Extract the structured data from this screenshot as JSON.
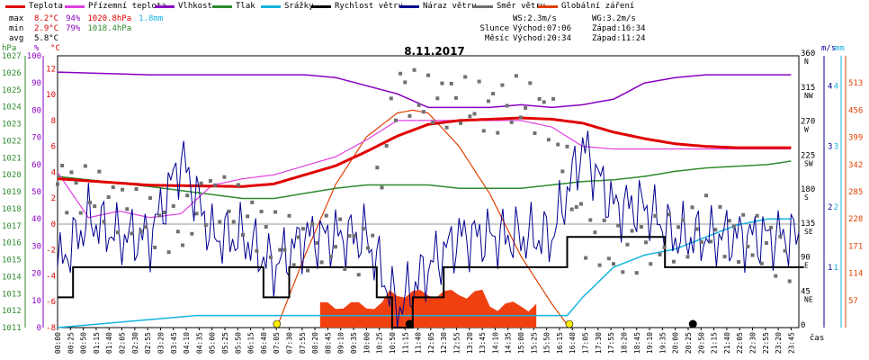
{
  "legend": [
    {
      "label": "Teplota",
      "color": "#e00000"
    },
    {
      "label": "Přízemní teplota",
      "color": "#e040e0"
    },
    {
      "label": "Vlhkost",
      "color": "#8a00c0"
    },
    {
      "label": "Tlak",
      "color": "#2e8b2e"
    },
    {
      "label": "Srážky",
      "color": "#14b4e0"
    },
    {
      "label": "Rychlost větru",
      "color": "#000000"
    },
    {
      "label": "Náraz větru",
      "color": "#000090"
    },
    {
      "label": "Směr větru",
      "color": "#707070"
    },
    {
      "label": "Globální záření",
      "color": "#e04000"
    }
  ],
  "stats": {
    "max": {
      "label": "max",
      "temp": "8.2°C",
      "hum": "94%",
      "press": "1020.8hPa",
      "rain": "1.8mm"
    },
    "min": {
      "label": "min",
      "temp": "2.9°C",
      "hum": "79%",
      "press": "1018.4hPa"
    },
    "avg": {
      "label": "avg",
      "temp": "5.8°C"
    }
  },
  "astro": {
    "ws": "WS:2.3m/s",
    "wg": "WG:3.2m/s",
    "sun": {
      "label": "Slunce",
      "rise": "Východ:07:06",
      "set": "Západ:16:34"
    },
    "moon": {
      "label": "Měsíc",
      "rise": "Východ:20:34",
      "set": "Západ:11:24"
    }
  },
  "title": "8.11.2017",
  "chart_data": {
    "type": "line",
    "title": "8.11.2017",
    "xlabel": "čas",
    "x_ticks": [
      "00:00",
      "00:25",
      "00:50",
      "01:15",
      "01:40",
      "02:05",
      "02:30",
      "02:55",
      "03:20",
      "03:45",
      "04:10",
      "04:35",
      "05:00",
      "05:25",
      "05:50",
      "06:15",
      "06:40",
      "07:05",
      "07:30",
      "07:55",
      "08:20",
      "08:45",
      "09:10",
      "09:35",
      "10:00",
      "10:25",
      "10:50",
      "11:15",
      "11:40",
      "12:05",
      "12:30",
      "12:55",
      "13:20",
      "13:45",
      "14:10",
      "14:35",
      "15:00",
      "15:25",
      "15:50",
      "16:15",
      "16:40",
      "17:05",
      "17:30",
      "17:55",
      "18:20",
      "18:45",
      "19:10",
      "19:35",
      "20:00",
      "20:25",
      "20:50",
      "21:15",
      "21:40",
      "22:05",
      "22:30",
      "22:55",
      "23:20",
      "23:45"
    ],
    "axes": {
      "hPa": {
        "label": "hPa",
        "ticks": [
          "1027",
          "1026",
          "1025",
          "1024",
          "1023",
          "1022",
          "1021",
          "1020",
          "1019",
          "1018",
          "1017",
          "1016",
          "1015",
          "1014",
          "1013",
          "1012",
          "1011"
        ],
        "range": [
          1011,
          1027
        ]
      },
      "percent": {
        "label": "%",
        "ticks": [
          "100",
          "90",
          "80",
          "70",
          "60",
          "50",
          "40",
          "30",
          "20",
          "10",
          "0"
        ],
        "range": [
          0,
          100
        ]
      },
      "celsius": {
        "label": "°C",
        "ticks": [
          "12",
          "10",
          "8",
          "6",
          "4",
          "2",
          "0",
          "-2",
          "-4",
          "-6",
          "-8"
        ],
        "range": [
          -8,
          13
        ]
      },
      "direction": {
        "ticks": [
          "360",
          "315",
          "270",
          "225",
          "180",
          "135",
          "90",
          "45",
          "0"
        ],
        "dir_labels": [
          "N",
          "NW",
          "W",
          "SW",
          "S",
          "SE",
          "E",
          "NE",
          ""
        ],
        "range": [
          0,
          360
        ]
      },
      "wind_ms": {
        "label": "m/s",
        "ticks": [
          "4",
          "3",
          "2",
          "1"
        ],
        "range": [
          0,
          4.5
        ]
      },
      "rain_mm": {
        "label": "mm",
        "ticks": [
          "4",
          "3",
          "2",
          "1"
        ],
        "range": [
          0,
          4.5
        ]
      },
      "radiation": {
        "ticks": [
          "513",
          "456",
          "399",
          "342",
          "285",
          "228",
          "171",
          "114",
          "57"
        ],
        "range": [
          0,
          570
        ]
      }
    },
    "series": [
      {
        "name": "Teplota",
        "unit": "°C",
        "x": [
          0,
          3,
          6,
          7,
          8,
          9,
          10,
          11,
          12,
          13,
          14,
          15,
          16,
          17,
          18,
          19,
          20,
          21,
          22,
          23,
          23.75
        ],
        "values": [
          3.5,
          3.0,
          2.9,
          3.1,
          3.8,
          4.5,
          5.6,
          6.8,
          7.7,
          8.0,
          8.1,
          8.2,
          8.1,
          7.8,
          7.1,
          6.6,
          6.2,
          6.0,
          5.9,
          5.9,
          5.9
        ]
      },
      {
        "name": "Přízemní teplota",
        "unit": "°C",
        "x": [
          0,
          1,
          2,
          3,
          4,
          5,
          6,
          7,
          8,
          9,
          10,
          11,
          12,
          13,
          14,
          15,
          16,
          17,
          18,
          19,
          20,
          21,
          22,
          23,
          23.75
        ],
        "values": [
          4.0,
          0.5,
          1.0,
          0.5,
          0.8,
          3.0,
          3.5,
          3.8,
          4.5,
          5.2,
          6.5,
          8.0,
          8.0,
          8.0,
          8.0,
          8.0,
          7.5,
          6.0,
          5.8,
          5.8,
          5.8,
          5.8,
          5.8,
          5.8,
          5.8
        ]
      },
      {
        "name": "Vlhkost",
        "unit": "%",
        "x": [
          0,
          3,
          6,
          7,
          8,
          9,
          10,
          11,
          12,
          13,
          14,
          15,
          16,
          17,
          18,
          19,
          20,
          21,
          22,
          23,
          23.75
        ],
        "values": [
          94,
          93,
          93,
          93,
          93,
          92,
          89,
          86,
          81,
          81,
          81,
          82,
          81,
          82,
          84,
          90,
          92,
          93,
          93,
          93,
          93
        ]
      },
      {
        "name": "Tlak",
        "unit": "hPa",
        "x": [
          0,
          3,
          6,
          7,
          8,
          9,
          10,
          11,
          12,
          13,
          14,
          15,
          16,
          17,
          18,
          19,
          20,
          21,
          22,
          23,
          23.75
        ],
        "values": [
          1019.9,
          1019.3,
          1018.6,
          1018.6,
          1018.9,
          1019.2,
          1019.4,
          1019.4,
          1019.4,
          1019.2,
          1019.2,
          1019.2,
          1019.4,
          1019.6,
          1019.7,
          1019.9,
          1020.2,
          1020.4,
          1020.5,
          1020.6,
          1020.8
        ]
      },
      {
        "name": "Srážky",
        "unit": "mm",
        "x": [
          0,
          4.5,
          16.5,
          17,
          18,
          19,
          20,
          21,
          22,
          23,
          23.75
        ],
        "values": [
          0,
          0.2,
          0.2,
          0.5,
          1.0,
          1.2,
          1.3,
          1.5,
          1.7,
          1.8,
          1.8
        ]
      },
      {
        "name": "Rychlost větru",
        "unit": "m/s",
        "x": [
          0,
          1,
          2,
          3,
          4,
          5,
          6,
          7,
          8,
          9,
          10,
          11,
          12,
          13,
          14,
          15,
          16,
          17,
          18,
          19,
          20,
          21,
          22,
          23,
          23.75
        ],
        "values": [
          0.5,
          1.0,
          1.0,
          1.0,
          1.2,
          1.0,
          1.0,
          0.5,
          1.0,
          1.0,
          1.0,
          0.0,
          0.5,
          1.0,
          1.0,
          1.0,
          1.0,
          1.5,
          1.5,
          1.5,
          1.0,
          1.0,
          1.0,
          1.0,
          1.0
        ]
      },
      {
        "name": "Náraz větru",
        "unit": "m/s",
        "x": [
          0,
          1,
          2,
          3,
          4,
          5,
          6,
          7,
          8,
          9,
          10,
          11,
          12,
          13,
          14,
          15,
          16,
          17,
          18,
          19,
          20,
          21,
          22,
          23,
          23.75
        ],
        "values": [
          1.0,
          1.8,
          1.5,
          1.5,
          2.8,
          1.5,
          1.5,
          1.0,
          1.5,
          1.5,
          1.5,
          0.3,
          1.0,
          1.5,
          1.5,
          1.5,
          1.5,
          3.0,
          2.0,
          2.0,
          1.5,
          1.5,
          1.5,
          1.5,
          1.5
        ]
      },
      {
        "name": "Směr větru",
        "unit": "°",
        "x": [
          0,
          1,
          2,
          3,
          4,
          5,
          6,
          7,
          8,
          9,
          10,
          11,
          12,
          13,
          14,
          15,
          16,
          17,
          18,
          19,
          20,
          21,
          22,
          23,
          23.75
        ],
        "values": [
          190,
          180,
          160,
          140,
          130,
          180,
          150,
          120,
          110,
          115,
          100,
          320,
          300,
          300,
          290,
          300,
          280,
          130,
          100,
          110,
          120,
          140,
          120,
          110,
          90
        ]
      },
      {
        "name": "Globální záření",
        "unit": "W/m²",
        "x": [
          7.1,
          8,
          9,
          10,
          11,
          11.5,
          12,
          13,
          14,
          15,
          16,
          16.57
        ],
        "values": [
          0,
          150,
          300,
          400,
          450,
          456,
          450,
          380,
          280,
          150,
          50,
          0
        ]
      }
    ],
    "grid": false
  }
}
